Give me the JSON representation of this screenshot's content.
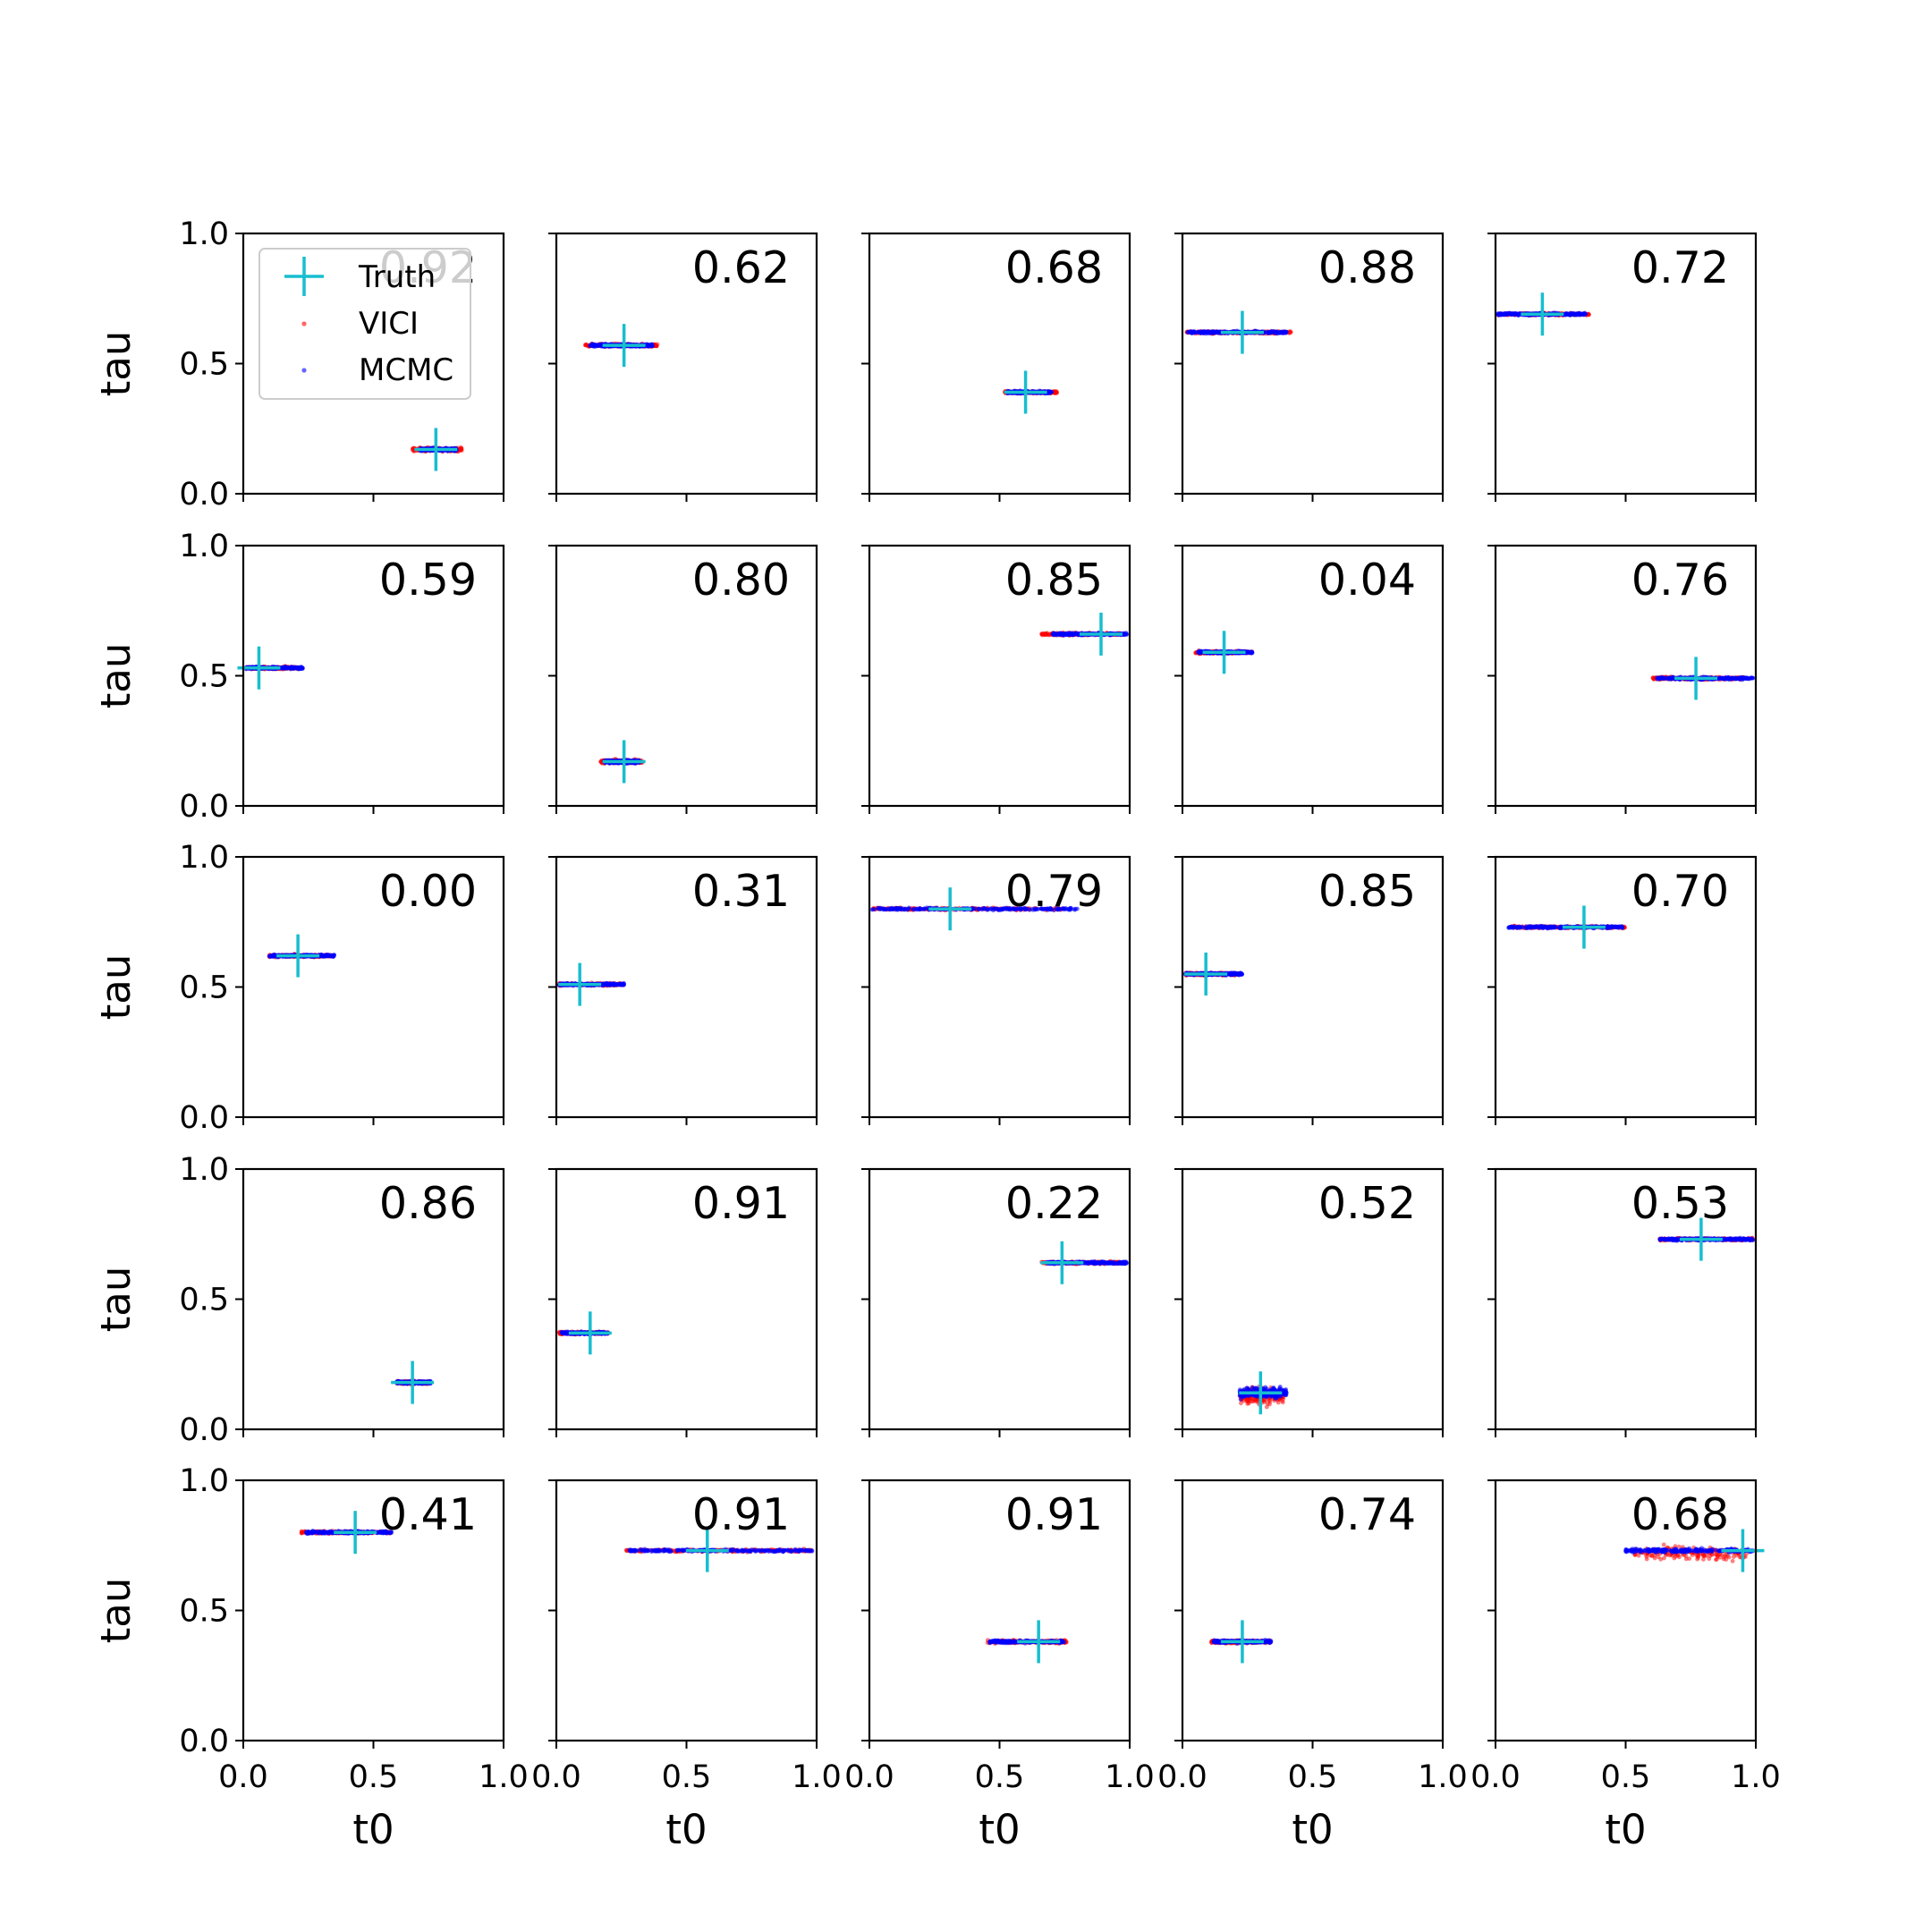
{
  "chart_data": {
    "type": "scatter",
    "grid": {
      "rows": 5,
      "cols": 5
    },
    "xlabel": "t0",
    "ylabel": "tau",
    "xlim": [
      0.0,
      1.0
    ],
    "ylim": [
      0.0,
      1.0
    ],
    "x_ticks": [
      "0.0",
      "0.5",
      "1.0"
    ],
    "y_ticks": [
      "0.0",
      "0.5",
      "1.0"
    ],
    "show_grid": false,
    "legend": {
      "placement": "upper-left of first panel",
      "entries": [
        {
          "label": "Truth",
          "marker": "plus",
          "color": "#17becf"
        },
        {
          "label": "VICI",
          "marker": "dot",
          "color": "#ff0000"
        },
        {
          "label": "MCMC",
          "marker": "dot",
          "color": "#0000ff"
        }
      ]
    },
    "colors": {
      "truth": "#17becf",
      "vici": "#ff0000",
      "mcmc": "#0000ff"
    },
    "panels": [
      {
        "value": "0.92",
        "truth": [
          0.74,
          0.17
        ],
        "vici": {
          "x": [
            0.65,
            0.84
          ],
          "y": 0.17,
          "h": 0.012
        },
        "mcmc": {
          "x": [
            0.68,
            0.82
          ],
          "y": 0.17,
          "h": 0.009
        }
      },
      {
        "value": "0.62",
        "truth": [
          0.26,
          0.57
        ],
        "vici": {
          "x": [
            0.11,
            0.39
          ],
          "y": 0.57,
          "h": 0.009
        },
        "mcmc": {
          "x": [
            0.13,
            0.37
          ],
          "y": 0.57,
          "h": 0.008
        }
      },
      {
        "value": "0.68",
        "truth": [
          0.6,
          0.39
        ],
        "vici": {
          "x": [
            0.52,
            0.72
          ],
          "y": 0.39,
          "h": 0.008
        },
        "mcmc": {
          "x": [
            0.53,
            0.7
          ],
          "y": 0.39,
          "h": 0.007
        }
      },
      {
        "value": "0.88",
        "truth": [
          0.23,
          0.62
        ],
        "vici": {
          "x": [
            0.01,
            0.42
          ],
          "y": 0.62,
          "h": 0.008
        },
        "mcmc": {
          "x": [
            0.02,
            0.4
          ],
          "y": 0.62,
          "h": 0.007
        }
      },
      {
        "value": "0.72",
        "truth": [
          0.18,
          0.69
        ],
        "vici": {
          "x": [
            0.01,
            0.36
          ],
          "y": 0.69,
          "h": 0.008
        },
        "mcmc": {
          "x": [
            0.01,
            0.35
          ],
          "y": 0.69,
          "h": 0.007
        }
      },
      {
        "value": "0.59",
        "truth": [
          0.06,
          0.53
        ],
        "vici": {
          "x": [
            0.01,
            0.22
          ],
          "y": 0.53,
          "h": 0.008
        },
        "mcmc": {
          "x": [
            0.01,
            0.23
          ],
          "y": 0.53,
          "h": 0.007
        }
      },
      {
        "value": "0.80",
        "truth": [
          0.26,
          0.17
        ],
        "vici": {
          "x": [
            0.17,
            0.33
          ],
          "y": 0.17,
          "h": 0.012
        },
        "mcmc": {
          "x": [
            0.18,
            0.32
          ],
          "y": 0.17,
          "h": 0.01
        }
      },
      {
        "value": "0.85",
        "truth": [
          0.89,
          0.66
        ],
        "vici": {
          "x": [
            0.66,
            0.98
          ],
          "y": 0.66,
          "h": 0.008
        },
        "mcmc": {
          "x": [
            0.7,
            0.99
          ],
          "y": 0.66,
          "h": 0.007
        }
      },
      {
        "value": "0.04",
        "truth": [
          0.16,
          0.59
        ],
        "vici": {
          "x": [
            0.05,
            0.27
          ],
          "y": 0.59,
          "h": 0.008
        },
        "mcmc": {
          "x": [
            0.06,
            0.27
          ],
          "y": 0.59,
          "h": 0.007
        }
      },
      {
        "value": "0.76",
        "truth": [
          0.77,
          0.49
        ],
        "vici": {
          "x": [
            0.6,
            0.96
          ],
          "y": 0.49,
          "h": 0.01
        },
        "mcmc": {
          "x": [
            0.62,
            0.99
          ],
          "y": 0.49,
          "h": 0.008
        }
      },
      {
        "value": "0.00",
        "truth": [
          0.21,
          0.62
        ],
        "vici": {
          "x": [
            0.1,
            0.34
          ],
          "y": 0.62,
          "h": 0.008
        },
        "mcmc": {
          "x": [
            0.1,
            0.35
          ],
          "y": 0.62,
          "h": 0.007
        }
      },
      {
        "value": "0.31",
        "truth": [
          0.09,
          0.51
        ],
        "vici": {
          "x": [
            0.01,
            0.26
          ],
          "y": 0.51,
          "h": 0.008
        },
        "mcmc": {
          "x": [
            0.01,
            0.26
          ],
          "y": 0.51,
          "h": 0.007
        }
      },
      {
        "value": "0.79",
        "truth": [
          0.31,
          0.8
        ],
        "vici": {
          "x": [
            0.01,
            0.74
          ],
          "y": 0.8,
          "h": 0.008
        },
        "mcmc": {
          "x": [
            0.01,
            0.8
          ],
          "y": 0.8,
          "h": 0.007
        }
      },
      {
        "value": "0.85",
        "truth": [
          0.09,
          0.55
        ],
        "vici": {
          "x": [
            0.01,
            0.22
          ],
          "y": 0.55,
          "h": 0.008
        },
        "mcmc": {
          "x": [
            0.01,
            0.23
          ],
          "y": 0.55,
          "h": 0.007
        }
      },
      {
        "value": "0.70",
        "truth": [
          0.34,
          0.73
        ],
        "vici": {
          "x": [
            0.06,
            0.5
          ],
          "y": 0.73,
          "h": 0.008
        },
        "mcmc": {
          "x": [
            0.05,
            0.49
          ],
          "y": 0.73,
          "h": 0.007
        }
      },
      {
        "value": "0.86",
        "truth": [
          0.65,
          0.18
        ],
        "vici": {
          "x": [
            0.59,
            0.71
          ],
          "y": 0.18,
          "h": 0.01
        },
        "mcmc": {
          "x": [
            0.59,
            0.72
          ],
          "y": 0.18,
          "h": 0.008
        }
      },
      {
        "value": "0.91",
        "truth": [
          0.13,
          0.37
        ],
        "vici": {
          "x": [
            0.01,
            0.2
          ],
          "y": 0.37,
          "h": 0.008
        },
        "mcmc": {
          "x": [
            0.02,
            0.2
          ],
          "y": 0.37,
          "h": 0.007
        }
      },
      {
        "value": "0.22",
        "truth": [
          0.74,
          0.64
        ],
        "vici": {
          "x": [
            0.66,
            0.98
          ],
          "y": 0.64,
          "h": 0.008
        },
        "mcmc": {
          "x": [
            0.68,
            0.99
          ],
          "y": 0.64,
          "h": 0.007
        }
      },
      {
        "value": "0.52",
        "truth": [
          0.3,
          0.14
        ],
        "vici": {
          "x": [
            0.22,
            0.39
          ],
          "y": 0.13,
          "h": 0.05
        },
        "mcmc": {
          "x": [
            0.22,
            0.4
          ],
          "y": 0.14,
          "h": 0.032
        }
      },
      {
        "value": "0.53",
        "truth": [
          0.79,
          0.73
        ],
        "vici": {
          "x": [
            0.63,
            0.99
          ],
          "y": 0.73,
          "h": 0.008
        },
        "mcmc": {
          "x": [
            0.63,
            0.99
          ],
          "y": 0.73,
          "h": 0.007
        }
      },
      {
        "value": "0.41",
        "truth": [
          0.43,
          0.8
        ],
        "vici": {
          "x": [
            0.22,
            0.57
          ],
          "y": 0.8,
          "h": 0.008
        },
        "mcmc": {
          "x": [
            0.24,
            0.57
          ],
          "y": 0.8,
          "h": 0.007
        }
      },
      {
        "value": "0.91",
        "truth": [
          0.58,
          0.73
        ],
        "vici": {
          "x": [
            0.26,
            0.98
          ],
          "y": 0.73,
          "h": 0.008
        },
        "mcmc": {
          "x": [
            0.27,
            0.99
          ],
          "y": 0.73,
          "h": 0.007
        }
      },
      {
        "value": "0.91",
        "truth": [
          0.65,
          0.38
        ],
        "vici": {
          "x": [
            0.45,
            0.76
          ],
          "y": 0.38,
          "h": 0.01
        },
        "mcmc": {
          "x": [
            0.46,
            0.75
          ],
          "y": 0.38,
          "h": 0.008
        }
      },
      {
        "value": "0.74",
        "truth": [
          0.23,
          0.38
        ],
        "vici": {
          "x": [
            0.11,
            0.34
          ],
          "y": 0.38,
          "h": 0.01
        },
        "mcmc": {
          "x": [
            0.12,
            0.34
          ],
          "y": 0.38,
          "h": 0.008
        }
      },
      {
        "value": "0.68",
        "truth": [
          0.95,
          0.73
        ],
        "vici": {
          "x": [
            0.53,
            0.97
          ],
          "y": 0.72,
          "h": 0.04
        },
        "mcmc": {
          "x": [
            0.5,
            0.99
          ],
          "y": 0.73,
          "h": 0.012
        }
      }
    ]
  }
}
